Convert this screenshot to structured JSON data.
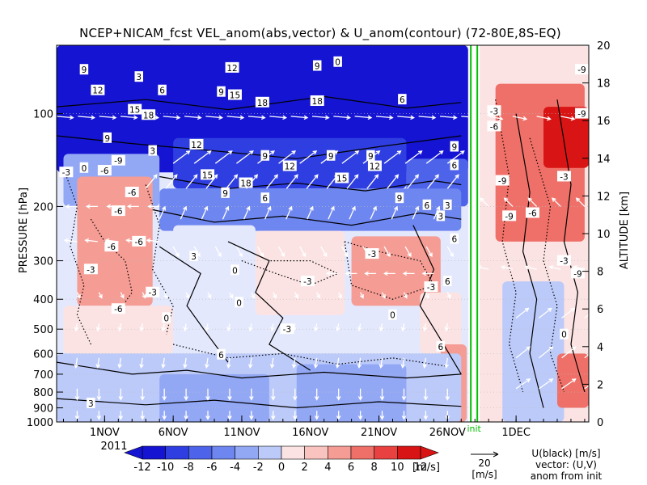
{
  "chart_data": {
    "type": "heatmap",
    "title": "NCEP+NICAM_fcst VEL_anom(abs,vector) & U_anom(contour)   (72-80E,8S-EQ)",
    "ylabel": "PRESSURE [hPa]",
    "y2label": "ALTITUDE [km]",
    "x_ticks": [
      "1NOV",
      "6NOV",
      "11NOV",
      "16NOV",
      "21NOV",
      "26NOV",
      "1DEC"
    ],
    "x_tick_days": [
      0,
      5,
      10,
      15,
      20,
      25,
      30
    ],
    "x_range_days": [
      -3.5,
      35.3
    ],
    "year_label": "2011",
    "init_label": "init",
    "init_day": 26.7,
    "y_ticks": [
      100,
      200,
      300,
      400,
      500,
      600,
      700,
      800,
      900,
      1000
    ],
    "y_range_hpa": [
      60,
      1000
    ],
    "y2_ticks": [
      0,
      2,
      4,
      6,
      8,
      10,
      12,
      14,
      16,
      18,
      20
    ],
    "colorbar": {
      "ticks": [
        "-12",
        "-10",
        "-8",
        "-6",
        "-4",
        "-2",
        "0",
        "2",
        "4",
        "6",
        "8",
        "10",
        "12"
      ],
      "unit": "[m/s]",
      "levels": [
        -12,
        -10,
        -8,
        -6,
        -4,
        -2,
        0,
        2,
        4,
        6,
        8,
        10,
        12
      ],
      "colors": [
        "#1414d2",
        "#2f3ee0",
        "#4d63ea",
        "#6e86f0",
        "#93a8f5",
        "#bccaf9",
        "#e3e8fc",
        "#fce3e3",
        "#f9c4c0",
        "#f59c94",
        "#ef7068",
        "#e84140",
        "#d81414"
      ]
    },
    "vector_ref": {
      "value": "20",
      "unit": "[m/s]"
    },
    "legend_text": [
      "U(black) [m/s]",
      "vector: (U,V)",
      "anom from init"
    ],
    "regions": [
      {
        "t0": -3.5,
        "t1": 26.5,
        "p0": 60,
        "p1": 155,
        "v": -11
      },
      {
        "t0": 5,
        "t1": 22,
        "p0": 120,
        "p1": 175,
        "v": -10
      },
      {
        "t0": 22,
        "t1": 26.5,
        "p0": 140,
        "p1": 200,
        "v": -8
      },
      {
        "t0": 4,
        "t1": 26,
        "p0": 175,
        "p1": 240,
        "v": -5
      },
      {
        "t0": -3,
        "t1": 4,
        "p0": 135,
        "p1": 200,
        "v": -3
      },
      {
        "t0": -2,
        "t1": 3.5,
        "p0": 160,
        "p1": 420,
        "v": 6
      },
      {
        "t0": -3,
        "t1": 5,
        "p0": 420,
        "p1": 600,
        "v": 3
      },
      {
        "t0": 5,
        "t1": 11,
        "p0": 230,
        "p1": 560,
        "v": 1
      },
      {
        "t0": 11,
        "t1": 17.5,
        "p0": 240,
        "p1": 450,
        "v": 2
      },
      {
        "t0": 18,
        "t1": 24.5,
        "p0": 250,
        "p1": 420,
        "v": 7
      },
      {
        "t0": 23,
        "t1": 26,
        "p0": 380,
        "p1": 600,
        "v": 3
      },
      {
        "t0": 24.5,
        "t1": 26.4,
        "p0": 560,
        "p1": 1000,
        "v": 6
      },
      {
        "t0": -3.5,
        "t1": 26,
        "p0": 600,
        "p1": 1000,
        "v": -2
      },
      {
        "t0": 4,
        "t1": 12,
        "p0": 700,
        "p1": 1000,
        "v": -4
      },
      {
        "t0": 14,
        "t1": 22,
        "p0": 650,
        "p1": 1000,
        "v": -4
      },
      {
        "t0": 27.2,
        "t1": 35.3,
        "p0": 60,
        "p1": 1000,
        "v": 3
      },
      {
        "t0": 28.5,
        "t1": 35,
        "p0": 80,
        "p1": 260,
        "v": 9
      },
      {
        "t0": 32,
        "t1": 35.3,
        "p0": 95,
        "p1": 150,
        "v": 12
      },
      {
        "t0": 29,
        "t1": 33.5,
        "p0": 350,
        "p1": 1000,
        "v": -2
      },
      {
        "t0": 33,
        "t1": 35.3,
        "p0": 600,
        "p1": 900,
        "v": 8
      }
    ],
    "contour_labels": [
      {
        "t": -1.5,
        "p": 72,
        "text": "9"
      },
      {
        "t": -0.5,
        "p": 84,
        "text": "12"
      },
      {
        "t": 2.5,
        "p": 76,
        "text": "3"
      },
      {
        "t": 4.2,
        "p": 84,
        "text": "6"
      },
      {
        "t": 8.5,
        "p": 85,
        "text": "9"
      },
      {
        "t": 9.3,
        "p": 71,
        "text": "12"
      },
      {
        "t": 9.5,
        "p": 87,
        "text": "15"
      },
      {
        "t": 11.5,
        "p": 92,
        "text": "18"
      },
      {
        "t": 15.5,
        "p": 70,
        "text": "9"
      },
      {
        "t": 15.5,
        "p": 91,
        "text": "18"
      },
      {
        "t": 17,
        "p": 68,
        "text": "0"
      },
      {
        "t": 21.7,
        "p": 90,
        "text": "6"
      },
      {
        "t": 2.2,
        "p": 97,
        "text": "15"
      },
      {
        "t": 3.2,
        "p": 101,
        "text": "18"
      },
      {
        "t": 0.2,
        "p": 120,
        "text": "9"
      },
      {
        "t": 3.5,
        "p": 132,
        "text": "3"
      },
      {
        "t": 6.7,
        "p": 126,
        "text": "12"
      },
      {
        "t": 11.7,
        "p": 137,
        "text": "9"
      },
      {
        "t": 13.5,
        "p": 148,
        "text": "12"
      },
      {
        "t": 16.5,
        "p": 137,
        "text": "9"
      },
      {
        "t": 19.7,
        "p": 148,
        "text": "12"
      },
      {
        "t": 19.4,
        "p": 137,
        "text": "9"
      },
      {
        "t": 7.5,
        "p": 158,
        "text": "15"
      },
      {
        "t": 10.3,
        "p": 168,
        "text": "18"
      },
      {
        "t": 17.3,
        "p": 162,
        "text": "15"
      },
      {
        "t": 25.5,
        "p": 128,
        "text": "9"
      },
      {
        "t": 25.5,
        "p": 147,
        "text": "6"
      },
      {
        "t": 8.8,
        "p": 181,
        "text": "9"
      },
      {
        "t": 11.7,
        "p": 188,
        "text": "6"
      },
      {
        "t": 21.5,
        "p": 188,
        "text": "9"
      },
      {
        "t": 23.5,
        "p": 198,
        "text": "6"
      },
      {
        "t": 25,
        "p": 198,
        "text": "3"
      },
      {
        "t": 1,
        "p": 142,
        "text": "-9"
      },
      {
        "t": -2.8,
        "p": 155,
        "text": "-3"
      },
      {
        "t": -1.5,
        "p": 150,
        "text": "0"
      },
      {
        "t": 0,
        "p": 153,
        "text": "-6"
      },
      {
        "t": 2,
        "p": 180,
        "text": "-6"
      },
      {
        "t": 1,
        "p": 207,
        "text": "-6"
      },
      {
        "t": 2.5,
        "p": 260,
        "text": "-6"
      },
      {
        "t": 0.5,
        "p": 270,
        "text": "-6"
      },
      {
        "t": -1,
        "p": 320,
        "text": "-3"
      },
      {
        "t": 1,
        "p": 430,
        "text": "-6"
      },
      {
        "t": 3.5,
        "p": 380,
        "text": "-3"
      },
      {
        "t": 4.5,
        "p": 460,
        "text": "0"
      },
      {
        "t": 6.5,
        "p": 290,
        "text": "3"
      },
      {
        "t": 9.5,
        "p": 322,
        "text": "0"
      },
      {
        "t": 14.8,
        "p": 350,
        "text": "-3"
      },
      {
        "t": 9.8,
        "p": 410,
        "text": "0"
      },
      {
        "t": 13.3,
        "p": 500,
        "text": "-3"
      },
      {
        "t": 19.5,
        "p": 285,
        "text": "-3"
      },
      {
        "t": 23.8,
        "p": 365,
        "text": "-3"
      },
      {
        "t": 21,
        "p": 450,
        "text": "0"
      },
      {
        "t": 8.5,
        "p": 605,
        "text": "6"
      },
      {
        "t": -1,
        "p": 870,
        "text": "3"
      },
      {
        "t": 25.5,
        "p": 255,
        "text": "6"
      },
      {
        "t": 24.5,
        "p": 215,
        "text": "3"
      },
      {
        "t": 25,
        "p": 350,
        "text": "6"
      },
      {
        "t": 24.5,
        "p": 570,
        "text": "6"
      },
      {
        "t": 28.4,
        "p": 98,
        "text": "-3"
      },
      {
        "t": 28.4,
        "p": 110,
        "text": "-6"
      },
      {
        "t": 29,
        "p": 165,
        "text": "-9"
      },
      {
        "t": 29.5,
        "p": 215,
        "text": "-9"
      },
      {
        "t": 31.2,
        "p": 210,
        "text": "-6"
      },
      {
        "t": 33.5,
        "p": 160,
        "text": "-3"
      },
      {
        "t": 33.5,
        "p": 300,
        "text": "-3"
      },
      {
        "t": 34.5,
        "p": 330,
        "text": "-9"
      },
      {
        "t": 33.5,
        "p": 520,
        "text": "0"
      },
      {
        "t": 34.8,
        "p": 72,
        "text": "-9"
      },
      {
        "t": 34.8,
        "p": 100,
        "text": "-9"
      }
    ],
    "contour_lines": [
      {
        "style": "solid",
        "pts": [
          [
            -3.5,
            118
          ],
          [
            2,
            125
          ],
          [
            8,
            132
          ],
          [
            14,
            140
          ],
          [
            20,
            128
          ],
          [
            26,
            118
          ]
        ]
      },
      {
        "style": "solid",
        "pts": [
          [
            -3.5,
            95
          ],
          [
            3,
            90
          ],
          [
            9,
            97
          ],
          [
            16,
            88
          ],
          [
            22,
            96
          ],
          [
            26,
            92
          ]
        ]
      },
      {
        "style": "solid",
        "pts": [
          [
            4,
            160
          ],
          [
            9,
            175
          ],
          [
            14,
            168
          ],
          [
            19,
            178
          ],
          [
            24,
            165
          ],
          [
            26,
            170
          ]
        ]
      },
      {
        "style": "solid",
        "pts": [
          [
            3.5,
            205
          ],
          [
            8,
            225
          ],
          [
            13,
            215
          ],
          [
            18,
            230
          ],
          [
            23,
            210
          ],
          [
            26,
            220
          ]
        ]
      },
      {
        "style": "solid",
        "pts": [
          [
            4,
            270
          ],
          [
            7,
            330
          ],
          [
            6,
            420
          ],
          [
            7.5,
            520
          ],
          [
            9,
            640
          ]
        ]
      },
      {
        "style": "solid",
        "pts": [
          [
            9,
            260
          ],
          [
            12,
            300
          ],
          [
            11,
            380
          ],
          [
            13,
            460
          ],
          [
            12,
            560
          ],
          [
            15,
            680
          ]
        ]
      },
      {
        "style": "solid",
        "pts": [
          [
            -3.5,
            640
          ],
          [
            2,
            700
          ],
          [
            6,
            680
          ],
          [
            10,
            720
          ],
          [
            16,
            690
          ],
          [
            22,
            720
          ],
          [
            26,
            700
          ]
        ]
      },
      {
        "style": "solid",
        "pts": [
          [
            -3.5,
            840
          ],
          [
            3,
            880
          ],
          [
            8,
            850
          ],
          [
            14,
            900
          ],
          [
            20,
            860
          ],
          [
            26,
            890
          ]
        ]
      },
      {
        "style": "solid",
        "pts": [
          [
            22.5,
            230
          ],
          [
            24,
            320
          ],
          [
            23,
            420
          ],
          [
            24.5,
            540
          ],
          [
            26,
            700
          ]
        ]
      },
      {
        "style": "dotted",
        "pts": [
          [
            -3,
            150
          ],
          [
            -2,
            200
          ],
          [
            -2.5,
            270
          ],
          [
            -1.5,
            360
          ],
          [
            -2,
            450
          ],
          [
            -1,
            560
          ]
        ]
      },
      {
        "style": "dotted",
        "pts": [
          [
            3,
            170
          ],
          [
            4,
            230
          ],
          [
            3.5,
            320
          ],
          [
            5,
            420
          ],
          [
            4.5,
            520
          ]
        ]
      },
      {
        "style": "dotted",
        "pts": [
          [
            -1,
            220
          ],
          [
            0,
            260
          ],
          [
            1.5,
            300
          ],
          [
            2,
            380
          ],
          [
            1,
            440
          ]
        ]
      },
      {
        "style": "dotted",
        "pts": [
          [
            10,
            300
          ],
          [
            12.5,
            330
          ],
          [
            15,
            360
          ],
          [
            17,
            330
          ],
          [
            15,
            300
          ],
          [
            12,
            300
          ]
        ]
      },
      {
        "style": "dotted",
        "pts": [
          [
            17.5,
            260
          ],
          [
            20,
            280
          ],
          [
            23,
            300
          ],
          [
            24,
            360
          ],
          [
            21,
            400
          ],
          [
            18,
            360
          ],
          [
            17.5,
            260
          ]
        ]
      },
      {
        "style": "dotted",
        "pts": [
          [
            5,
            560
          ],
          [
            9,
            620
          ],
          [
            13,
            600
          ],
          [
            17,
            650
          ],
          [
            21,
            620
          ],
          [
            25,
            660
          ]
        ]
      },
      {
        "style": "dotted",
        "pts": [
          [
            28.5,
            90
          ],
          [
            29.5,
            160
          ],
          [
            29,
            260
          ],
          [
            30,
            380
          ],
          [
            29.5,
            560
          ],
          [
            30.5,
            800
          ]
        ]
      },
      {
        "style": "dotted",
        "pts": [
          [
            31,
            120
          ],
          [
            32.5,
            200
          ],
          [
            32,
            300
          ],
          [
            33,
            420
          ],
          [
            32.5,
            600
          ],
          [
            33.5,
            800
          ]
        ]
      },
      {
        "style": "solid",
        "pts": [
          [
            30,
            100
          ],
          [
            31,
            180
          ],
          [
            30.5,
            280
          ],
          [
            31.5,
            400
          ],
          [
            31,
            600
          ],
          [
            32,
            900
          ]
        ]
      },
      {
        "style": "solid",
        "pts": [
          [
            33,
            90
          ],
          [
            34,
            170
          ],
          [
            33.5,
            260
          ],
          [
            34.5,
            380
          ],
          [
            34,
            560
          ],
          [
            35,
            800
          ]
        ]
      }
    ],
    "vectors": [
      {
        "t0": -3.5,
        "t1": 26,
        "p": 102,
        "n": 20,
        "u": 12,
        "v": -1
      },
      {
        "t0": 5,
        "t1": 25,
        "p": 145,
        "n": 14,
        "u": 12,
        "v": 9
      },
      {
        "t0": 3,
        "t1": 25,
        "p": 175,
        "n": 16,
        "u": 8,
        "v": 10
      },
      {
        "t0": 4,
        "t1": 24,
        "p": 220,
        "n": 14,
        "u": 4,
        "v": 9
      },
      {
        "t0": -2,
        "t1": 4,
        "p": 200,
        "n": 5,
        "u": -8,
        "v": 0
      },
      {
        "t0": -2,
        "t1": 4,
        "p": 260,
        "n": 5,
        "u": -9,
        "v": 1
      },
      {
        "t0": 5,
        "t1": 25,
        "p": 270,
        "n": 14,
        "u": 4,
        "v": -7
      },
      {
        "t0": 17,
        "t1": 24,
        "p": 330,
        "n": 6,
        "u": -8,
        "v": 0
      },
      {
        "t0": -2,
        "t1": 25,
        "p": 380,
        "n": 18,
        "u": 2,
        "v": -4
      },
      {
        "t0": -2,
        "t1": 25,
        "p": 480,
        "n": 18,
        "u": -1,
        "v": -5
      },
      {
        "t0": -2,
        "t1": 25,
        "p": 620,
        "n": 18,
        "u": -1,
        "v": -7
      },
      {
        "t0": -2,
        "t1": 25,
        "p": 780,
        "n": 18,
        "u": 0,
        "v": -8
      },
      {
        "t0": -2,
        "t1": 25,
        "p": 920,
        "n": 18,
        "u": 0,
        "v": -6
      },
      {
        "t0": 28,
        "t1": 35,
        "p": 102,
        "n": 5,
        "u": 10,
        "v": -2
      },
      {
        "t0": 28,
        "t1": 35,
        "p": 200,
        "n": 5,
        "u": -6,
        "v": 6
      },
      {
        "t0": 28,
        "t1": 35,
        "p": 320,
        "n": 5,
        "u": -8,
        "v": 2
      },
      {
        "t0": 30,
        "t1": 35,
        "p": 460,
        "n": 4,
        "u": 9,
        "v": 7
      },
      {
        "t0": 30,
        "t1": 35,
        "p": 620,
        "n": 4,
        "u": 10,
        "v": 8
      },
      {
        "t0": 30,
        "t1": 35,
        "p": 780,
        "n": 4,
        "u": 10,
        "v": 7
      }
    ]
  }
}
